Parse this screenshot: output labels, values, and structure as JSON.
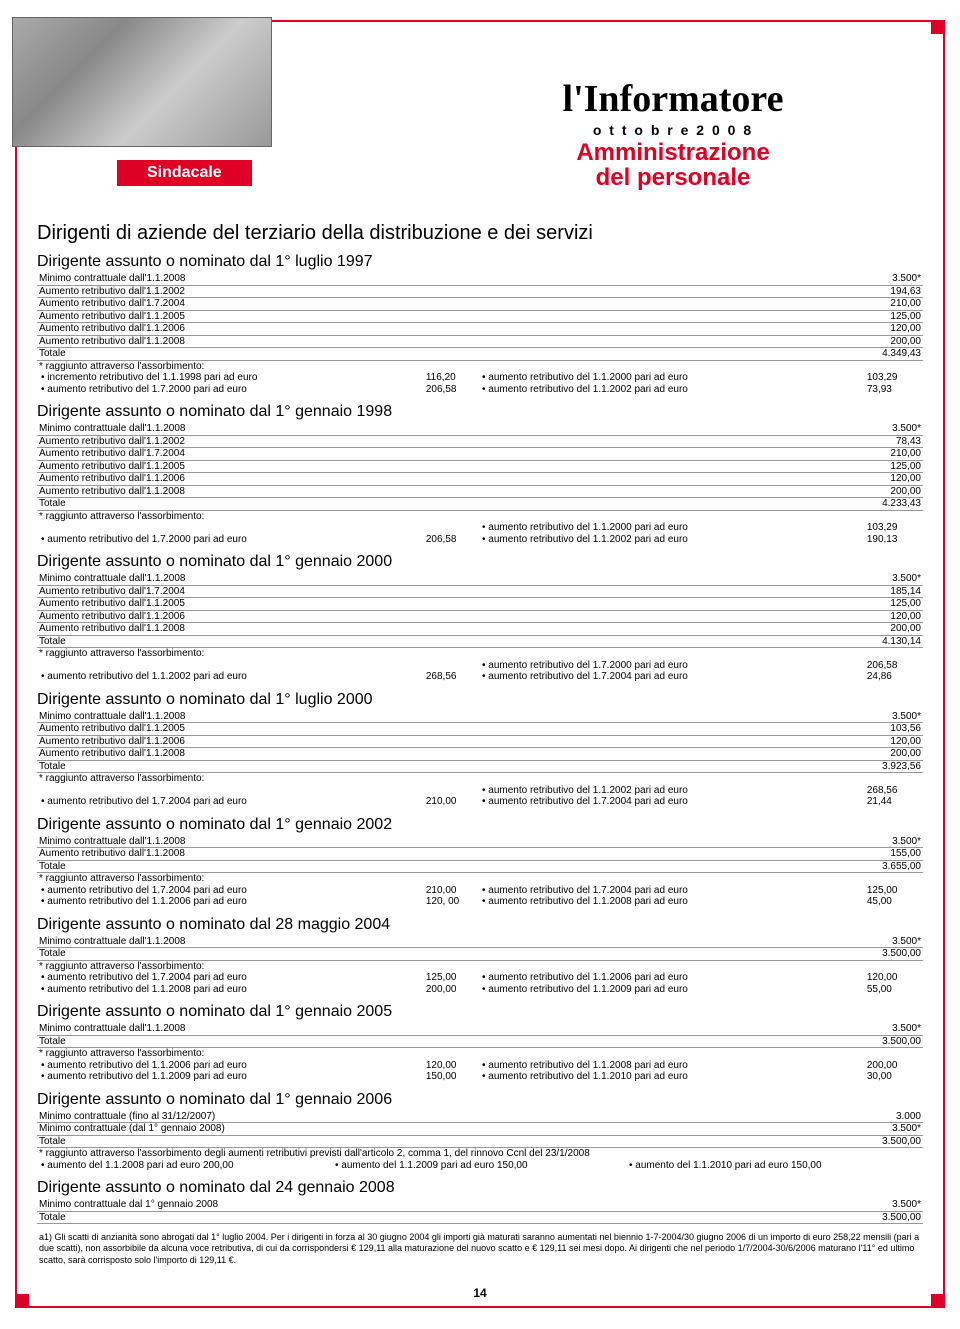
{
  "header": {
    "sindacale": "Sindacale",
    "informatore": "l'Informatore",
    "date": "o t t o b r e   2 0 0 8",
    "amm_line1": "Amministrazione",
    "amm_line2": "del personale"
  },
  "main_title": "Dirigenti di aziende del terziario della distribuzione e dei servizi",
  "sections": [
    {
      "title": "Dirigente assunto o nominato dal 1° luglio 1997",
      "rows": [
        {
          "label": "Minimo contrattuale dall'1.1.2008",
          "value": "3.500*"
        },
        {
          "label": "Aumento retributivo dall'1.1.2002",
          "value": "194,63"
        },
        {
          "label": "Aumento retributivo dall'1.7.2004",
          "value": "210,00"
        },
        {
          "label": "Aumento retributivo dall'1.1.2005",
          "value": "125,00"
        },
        {
          "label": "Aumento retributivo dall'1.1.2006",
          "value": "120,00"
        },
        {
          "label": "Aumento retributivo dall'1.1.2008",
          "value": "200,00"
        },
        {
          "label": "Totale",
          "value": "4.349,43"
        }
      ],
      "note_head": "* raggiunto attraverso l'assorbimento:",
      "note_lines": [
        {
          "l": "• incremento retributivo del 1.1.1998 pari ad euro",
          "lv": "116,20",
          "r": "• aumento retributivo del 1.1.2000 pari ad euro",
          "rv": "103,29"
        },
        {
          "l": "• aumento retributivo del 1.7.2000 pari ad euro",
          "lv": "206,58",
          "r": "• aumento retributivo del 1.1.2002 pari ad euro",
          "rv": "73,93"
        }
      ]
    },
    {
      "title": "Dirigente assunto o nominato dal 1° gennaio 1998",
      "rows": [
        {
          "label": "Minimo contrattuale dall'1.1.2008",
          "value": "3.500*"
        },
        {
          "label": "Aumento retributivo dall'1.1.2002",
          "value": "78,43"
        },
        {
          "label": "Aumento retributivo dall'1.7.2004",
          "value": "210,00"
        },
        {
          "label": "Aumento retributivo dall'1.1.2005",
          "value": "125,00"
        },
        {
          "label": "Aumento retributivo dall'1.1.2006",
          "value": "120,00"
        },
        {
          "label": "Aumento retributivo dall'1.1.2008",
          "value": "200,00"
        },
        {
          "label": "Totale",
          "value": "4.233,43"
        }
      ],
      "note_head": "* raggiunto attraverso l'assorbimento:",
      "note_lines": [
        {
          "l": "",
          "lv": "",
          "r": "• aumento retributivo del 1.1.2000 pari ad euro",
          "rv": "103,29"
        },
        {
          "l": "• aumento retributivo del 1.7.2000 pari ad euro",
          "lv": "206,58",
          "r": "• aumento retributivo del 1.1.2002 pari ad euro",
          "rv": "190,13"
        }
      ]
    },
    {
      "title": "Dirigente assunto o nominato dal 1° gennaio 2000",
      "rows": [
        {
          "label": "Minimo contrattuale dall'1.1.2008",
          "value": "3.500*"
        },
        {
          "label": "Aumento retributivo dall'1.7.2004",
          "value": "185,14"
        },
        {
          "label": "Aumento retributivo dall'1.1.2005",
          "value": "125,00"
        },
        {
          "label": "Aumento retributivo dall'1.1.2006",
          "value": "120,00"
        },
        {
          "label": "Aumento retributivo dall'1.1.2008",
          "value": "200,00"
        },
        {
          "label": "Totale",
          "value": "4.130,14"
        }
      ],
      "note_head": "* raggiunto attraverso l'assorbimento:",
      "note_lines": [
        {
          "l": "",
          "lv": "",
          "r": "• aumento retributivo del 1.7.2000 pari ad euro",
          "rv": "206,58"
        },
        {
          "l": "• aumento retributivo del 1.1.2002 pari ad euro",
          "lv": "268,56",
          "r": "• aumento retributivo del 1.7.2004 pari ad euro",
          "rv": "24,86"
        }
      ]
    },
    {
      "title": "Dirigente assunto o nominato dal 1° luglio 2000",
      "rows": [
        {
          "label": "Minimo contrattuale dall'1.1.2008",
          "value": "3.500*"
        },
        {
          "label": "Aumento retributivo dall'1.1.2005",
          "value": "103,56"
        },
        {
          "label": "Aumento retributivo dall'1.1.2006",
          "value": "120,00"
        },
        {
          "label": "Aumento retributivo dall'1.1.2008",
          "value": "200,00"
        },
        {
          "label": "Totale",
          "value": "3.923,56"
        }
      ],
      "note_head": "* raggiunto attraverso l'assorbimento:",
      "note_lines": [
        {
          "l": "",
          "lv": "",
          "r": "• aumento retributivo del 1.1.2002 pari ad euro",
          "rv": "268,56"
        },
        {
          "l": "• aumento retributivo del 1.7.2004 pari ad euro",
          "lv": "210,00",
          "r": "• aumento retributivo del 1.7.2004 pari ad euro",
          "rv": "21,44"
        }
      ]
    },
    {
      "title": "Dirigente assunto o nominato dal 1° gennaio 2002",
      "rows": [
        {
          "label": "Minimo contrattuale dall'1.1.2008",
          "value": "3.500*"
        },
        {
          "label": "Aumento retributivo dall'1.1.2008",
          "value": "155,00"
        },
        {
          "label": "Totale",
          "value": "3.655,00"
        }
      ],
      "note_head": "* raggiunto attraverso l'assorbimento:",
      "note_lines": [
        {
          "l": "• aumento retributivo del 1.7.2004 pari ad euro",
          "lv": "210,00",
          "r": "• aumento retributivo del 1.7.2004 pari ad euro",
          "rv": "125,00"
        },
        {
          "l": "• aumento retributivo del 1.1.2006 pari ad euro",
          "lv": "120, 00",
          "r": "• aumento retributivo del 1.1.2008 pari ad euro",
          "rv": "45,00"
        }
      ]
    },
    {
      "title": "Dirigente assunto o nominato dal 28 maggio 2004",
      "rows": [
        {
          "label": "Minimo contrattuale dall'1.1.2008",
          "value": "3.500*"
        },
        {
          "label": "Totale",
          "value": "3.500,00"
        }
      ],
      "note_head": "* raggiunto attraverso l'assorbimento:",
      "note_lines": [
        {
          "l": "• aumento retributivo del 1.7.2004 pari ad euro",
          "lv": "125,00",
          "r": "• aumento retributivo del 1.1.2006 pari ad euro",
          "rv": "120,00"
        },
        {
          "l": "• aumento retributivo del 1.1.2008 pari ad euro",
          "lv": "200,00",
          "r": "• aumento retributivo del 1.1.2009 pari ad euro",
          "rv": "55,00"
        }
      ]
    },
    {
      "title": "Dirigente assunto o nominato dal 1° gennaio 2005",
      "rows": [
        {
          "label": "Minimo contrattuale dall'1.1.2008",
          "value": "3.500*"
        },
        {
          "label": "Totale",
          "value": "3.500,00"
        }
      ],
      "note_head": "* raggiunto attraverso l'assorbimento:",
      "note_lines": [
        {
          "l": "• aumento retributivo del 1.1.2006 pari ad euro",
          "lv": "120,00",
          "r": "• aumento retributivo del 1.1.2008 pari ad euro",
          "rv": "200,00"
        },
        {
          "l": "• aumento retributivo del 1.1.2009 pari ad euro",
          "lv": "150,00",
          "r": "• aumento retributivo del 1.1.2010 pari ad euro",
          "rv": "30,00"
        }
      ]
    },
    {
      "title": "Dirigente assunto o nominato dal 1° gennaio 2006",
      "rows": [
        {
          "label": "Minimo contrattuale (fino al 31/12/2007)",
          "value": "3.000"
        },
        {
          "label": "Minimo contrattuale (dal 1° gennaio 2008)",
          "value": "3.500*"
        },
        {
          "label": "Totale",
          "value": "3.500,00"
        }
      ],
      "note_head": "* raggiunto attraverso l'assorbimento degli aumenti retributivi previsti dall'articolo 2, comma 1, del rinnovo Ccnl del 23/1/2008",
      "note_lines_3": [
        {
          "a": "• aumento del 1.1.2008 pari ad euro 200,00",
          "b": "• aumento del 1.1.2009 pari ad euro 150,00",
          "c": "• aumento del 1.1.2010 pari ad euro 150,00"
        }
      ]
    },
    {
      "title": "Dirigente assunto o nominato dal 24 gennaio 2008",
      "rows": [
        {
          "label": "Minimo contrattuale dal 1° gennaio 2008",
          "value": "3.500*"
        },
        {
          "label": "Totale",
          "value": "3.500,00"
        }
      ]
    }
  ],
  "footnote": "a1) Gli scatti di anzianità sono abrogati dal 1° luglio 2004. Per i dirigenti in forza al 30 giugno 2004 gli importi già maturati saranno aumentati nel biennio 1-7-2004/30 giugno 2006 di un importo di euro 258,22 mensili (pari a due scatti), non assorbibile da alcuna voce retributiva, di cui da corrispondersi € 129,11 alla maturazione del nuovo scatto e € 129,11 sei mesi dopo. Ai dirigenti che nel periodo 1/7/2004-30/6/2006 maturano l'11° ed ultimo scatto, sarà corrisposto solo l'importo di 129,11 €.",
  "page_num": "14",
  "colors": {
    "accent": "#de0025",
    "text": "#000000",
    "rule": "#999999",
    "bg": "#ffffff"
  }
}
